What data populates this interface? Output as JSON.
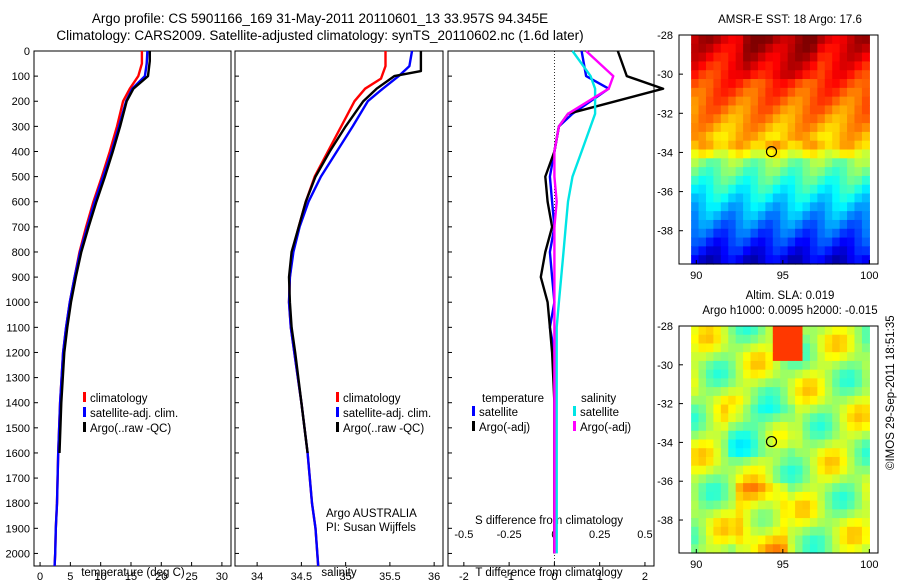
{
  "header": {
    "line1": "Argo profile: CS 5901166_169 31-May-2011 20110601_13 33.957S 94.345E",
    "line2": "Climatology: CARS2009. Satellite-adjusted climatology: synTS_20110602.nc (1.6d later)"
  },
  "colors": {
    "climatology": "#ff0000",
    "satellite": "#0000ff",
    "argo": "#000000",
    "satellite_s": "#00e5e5",
    "argo_s_adj": "#ff00ff"
  },
  "chart_data": [
    {
      "type": "line",
      "xlabel": "temperature (deg C)",
      "ylabel": "",
      "xlim": [
        -1,
        31.5
      ],
      "ylim": [
        2050,
        0
      ],
      "xticks": [
        0,
        5,
        10,
        15,
        20,
        25,
        30
      ],
      "xtick_labels": [
        "0",
        "5",
        "10",
        "15",
        "20",
        "25",
        "30"
      ],
      "yticks": [
        0,
        100,
        200,
        300,
        400,
        500,
        600,
        700,
        800,
        900,
        1000,
        1100,
        1200,
        1300,
        1400,
        1500,
        1600,
        1700,
        1800,
        1900,
        2000
      ],
      "ytick_labels": [
        "0",
        "100",
        "200",
        "300",
        "400",
        "500",
        "600",
        "700",
        "800",
        "900",
        "1000",
        "1100",
        "1200",
        "1300",
        "1400",
        "1500",
        "1600",
        "1700",
        "1800",
        "1900",
        "2000"
      ],
      "legend": {
        "position": "lower-center",
        "entries": [
          "climatology",
          "satellite-adj. clim.",
          "Argo(..raw -QC)"
        ]
      },
      "series": [
        {
          "name": "climatology",
          "color": "#ff0000",
          "x": [
            16.8,
            16.8,
            16.2,
            14.8,
            13.7,
            12.7,
            11.5,
            10.2,
            8.8,
            7.6,
            6.5,
            5.7,
            4.9,
            4.3,
            3.8,
            3.3,
            3.0,
            2.8,
            2.6,
            2.5,
            2.4
          ],
          "y": [
            0,
            50,
            100,
            150,
            200,
            300,
            400,
            500,
            600,
            700,
            800,
            900,
            1000,
            1100,
            1200,
            1400,
            1600,
            1800,
            1900,
            2000,
            2050
          ]
        },
        {
          "name": "satellite-adj. clim.",
          "color": "#0000ff",
          "x": [
            17.7,
            17.6,
            17.3,
            15.2,
            14.2,
            13.0,
            11.8,
            10.4,
            9.0,
            7.8,
            6.6,
            5.7,
            4.9,
            4.3,
            3.8,
            3.3,
            3.0,
            2.8,
            2.6,
            2.5,
            2.4
          ],
          "y": [
            0,
            50,
            100,
            150,
            200,
            300,
            400,
            500,
            600,
            700,
            800,
            900,
            1000,
            1100,
            1200,
            1400,
            1600,
            1800,
            1900,
            2000,
            2050
          ]
        },
        {
          "name": "Argo(..raw -QC)",
          "color": "#000000",
          "x": [
            18.1,
            18.1,
            17.8,
            15.4,
            14.3,
            13.2,
            12.0,
            10.7,
            9.3,
            8.0,
            6.8,
            5.9,
            5.1,
            4.5,
            4.0,
            3.5,
            3.2
          ],
          "y": [
            0,
            40,
            100,
            150,
            200,
            300,
            400,
            500,
            600,
            700,
            800,
            900,
            1000,
            1100,
            1200,
            1400,
            1600
          ]
        }
      ]
    },
    {
      "type": "line",
      "xlabel": "salinity",
      "ylabel": "",
      "xlim": [
        33.75,
        36.1
      ],
      "ylim": [
        2050,
        0
      ],
      "xticks": [
        34,
        34.5,
        35,
        35.5,
        36
      ],
      "xtick_labels": [
        "34",
        "34.5",
        "35",
        "35.5",
        "36"
      ],
      "legend": {
        "position": "lower-center",
        "entries": [
          "climatology",
          "satellite-adj. clim.",
          "Argo(..raw -QC)"
        ]
      },
      "annotation": [
        "Argo AUSTRALIA",
        "PI: Susan Wijffels"
      ],
      "series": [
        {
          "name": "climatology",
          "color": "#ff0000",
          "x": [
            35.45,
            35.45,
            35.4,
            35.22,
            35.1,
            34.95,
            34.8,
            34.65,
            34.55,
            34.47,
            34.4,
            34.37,
            34.36,
            34.38,
            34.42,
            34.5,
            34.57,
            34.62,
            34.66,
            34.68,
            34.69
          ],
          "y": [
            0,
            60,
            110,
            150,
            200,
            300,
            400,
            500,
            600,
            700,
            800,
            900,
            1000,
            1100,
            1200,
            1400,
            1600,
            1800,
            1900,
            2000,
            2050
          ]
        },
        {
          "name": "satellite-adj. clim.",
          "color": "#0000ff",
          "x": [
            35.75,
            35.72,
            35.6,
            35.42,
            35.25,
            35.08,
            34.9,
            34.72,
            34.58,
            34.48,
            34.41,
            34.37,
            34.36,
            34.38,
            34.42,
            34.5,
            34.57,
            34.62,
            34.66,
            34.68,
            34.69
          ],
          "y": [
            0,
            60,
            100,
            150,
            200,
            300,
            400,
            500,
            600,
            700,
            800,
            900,
            1000,
            1100,
            1200,
            1400,
            1600,
            1800,
            1900,
            2000,
            2050
          ]
        },
        {
          "name": "Argo(..raw -QC)",
          "color": "#000000",
          "x": [
            35.85,
            35.85,
            35.55,
            35.35,
            35.2,
            35.0,
            34.82,
            34.66,
            34.55,
            34.47,
            34.39,
            34.36,
            34.37,
            34.39,
            34.43,
            34.5,
            34.57
          ],
          "y": [
            0,
            80,
            100,
            150,
            200,
            300,
            400,
            500,
            600,
            700,
            800,
            900,
            1000,
            1100,
            1200,
            1400,
            1600
          ]
        }
      ]
    },
    {
      "type": "line",
      "xlabel_bottom": "T difference from climatology",
      "xlabel_top": "S difference from climatology",
      "xlim": [
        -2.35,
        2.2
      ],
      "ylim": [
        2050,
        0
      ],
      "xticks_T": [
        -2,
        -1,
        0,
        1,
        2
      ],
      "xtick_labels_T": [
        "-2",
        "-1",
        "0",
        "1",
        "2"
      ],
      "xticks_S": [
        -0.5,
        -0.25,
        0,
        0.25,
        0.5
      ],
      "xtick_labels_S": [
        "-0.5",
        "-0.25",
        "0",
        "0.25",
        "0.5"
      ],
      "legend": {
        "position": "lower-center",
        "groups": [
          {
            "title": "temperature",
            "entries": [
              "satellite",
              "Argo(-adj)"
            ]
          },
          {
            "title": "salinity",
            "entries": [
              "satellite",
              "Argo(-adj)"
            ]
          }
        ]
      },
      "series": [
        {
          "name": "satellite",
          "group": "temperature",
          "color": "#0000ff",
          "x": [
            0.6,
            0.7,
            1.2,
            0.4,
            0.1,
            0.0,
            -0.1,
            -0.05,
            0.0,
            -0.1,
            -0.05,
            0.0,
            -0.1,
            0.0,
            0.0,
            0.0,
            0.0,
            0.0,
            0.0
          ],
          "y": [
            0,
            100,
            150,
            250,
            300,
            400,
            500,
            600,
            700,
            800,
            900,
            1000,
            1100,
            1200,
            1400,
            1600,
            1800,
            1900,
            2000
          ]
        },
        {
          "name": "Argo(-adj)",
          "group": "temperature",
          "color": "#000000",
          "x": [
            1.4,
            1.6,
            2.4,
            0.3,
            0.1,
            0.0,
            -0.2,
            -0.15,
            -0.05,
            -0.2,
            -0.3,
            -0.15,
            -0.1,
            -0.05,
            0.0,
            0.0,
            0.0,
            0.0,
            0.0
          ],
          "y": [
            0,
            100,
            150,
            250,
            300,
            400,
            500,
            600,
            700,
            800,
            900,
            1000,
            1100,
            1200,
            1400,
            1600,
            1800,
            1900,
            2000
          ]
        },
        {
          "name": "satellite",
          "group": "salinity",
          "color": "#00e5e5",
          "x": [
            0.4,
            0.8,
            0.9,
            0.9,
            0.8,
            0.6,
            0.4,
            0.3,
            0.25,
            0.2,
            0.15,
            0.1,
            0.05,
            0.05,
            0.05,
            0.05,
            0.05,
            0.05,
            0.05
          ],
          "y": [
            0,
            100,
            150,
            250,
            300,
            400,
            500,
            600,
            700,
            800,
            900,
            1000,
            1100,
            1200,
            1400,
            1600,
            1800,
            1900,
            2000
          ]
        },
        {
          "name": "Argo(-adj)",
          "group": "salinity",
          "color": "#ff00ff",
          "x": [
            0.7,
            1.3,
            1.2,
            0.3,
            0.1,
            0.0,
            0.0,
            0.05,
            0.0,
            0.0,
            0.0,
            0.0,
            0.0,
            0.0,
            0.0,
            0.0,
            0.0,
            0.0,
            0.0
          ],
          "y": [
            0,
            100,
            150,
            250,
            300,
            400,
            500,
            600,
            700,
            800,
            900,
            1000,
            1100,
            1200,
            1400,
            1600,
            1800,
            1900,
            2000
          ]
        }
      ]
    },
    {
      "type": "heatmap",
      "title": "AMSR-E SST: 18 Argo: 17.6",
      "xlim": [
        89,
        100.5
      ],
      "ylim": [
        -39.7,
        -28
      ],
      "xticks": [
        90,
        95,
        100
      ],
      "yticks": [
        -28,
        -30,
        -32,
        -34,
        -36,
        -38
      ],
      "marker": {
        "lon": 94.345,
        "lat": -33.957
      }
    },
    {
      "type": "heatmap",
      "title_lines": [
        "Altim. SLA: 0.019",
        "Argo h1000: 0.0095 h2000: -0.015"
      ],
      "xlim": [
        89,
        100.5
      ],
      "ylim": [
        -39.7,
        -28
      ],
      "xticks": [
        90,
        95,
        100
      ],
      "yticks": [
        -28,
        -30,
        -32,
        -34,
        -36,
        -38
      ],
      "marker": {
        "lon": 94.345,
        "lat": -33.957
      }
    }
  ],
  "stamp": "©IMOS 29-Sep-2011 18:51:35"
}
